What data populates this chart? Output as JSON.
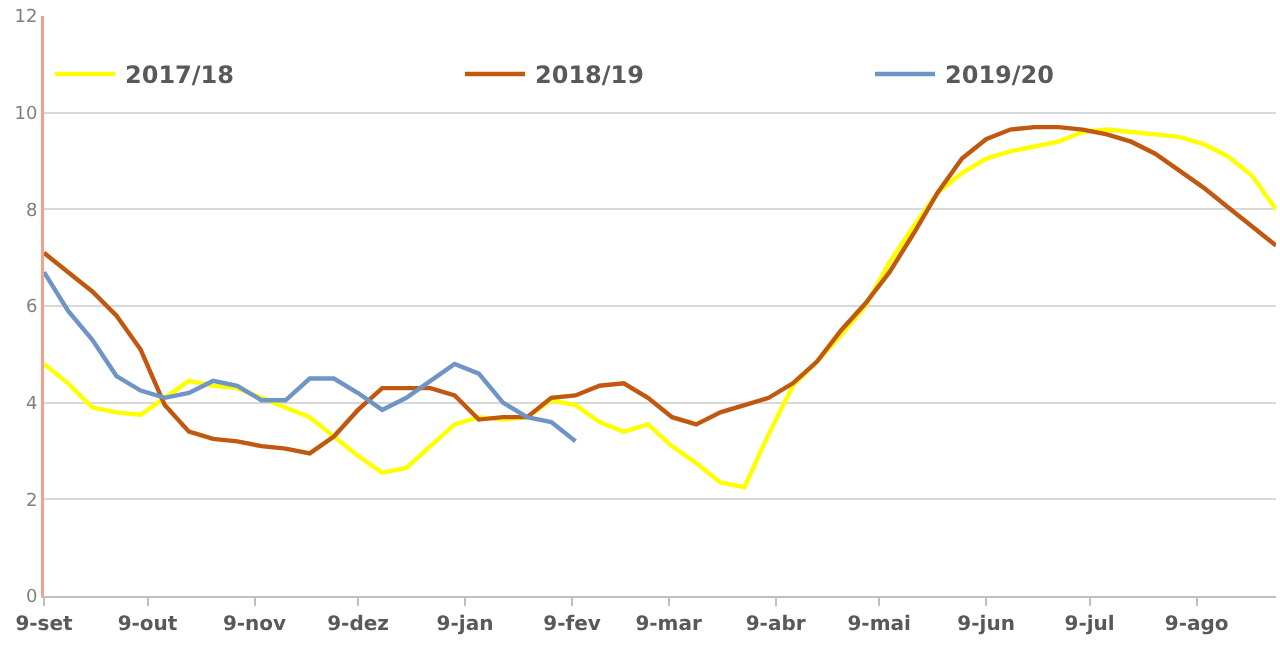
{
  "chart_data": {
    "type": "line",
    "x": [
      "2018-09-09",
      "2018-09-16",
      "2018-09-23",
      "2018-09-30",
      "2018-10-07",
      "2018-10-14",
      "2018-10-21",
      "2018-10-28",
      "2018-11-04",
      "2018-11-11",
      "2018-11-18",
      "2018-11-25",
      "2018-12-02",
      "2018-12-09",
      "2018-12-16",
      "2018-12-23",
      "2018-12-30",
      "2019-01-06",
      "2019-01-13",
      "2019-01-20",
      "2019-01-27",
      "2019-02-03",
      "2019-02-10",
      "2019-02-17",
      "2019-02-24",
      "2019-03-03",
      "2019-03-10",
      "2019-03-17",
      "2019-03-24",
      "2019-03-31",
      "2019-04-07",
      "2019-04-14",
      "2019-04-21",
      "2019-04-28",
      "2019-05-05",
      "2019-05-12",
      "2019-05-19",
      "2019-05-26",
      "2019-06-02",
      "2019-06-09",
      "2019-06-16",
      "2019-06-23",
      "2019-06-30",
      "2019-07-07",
      "2019-07-14",
      "2019-07-21",
      "2019-07-28",
      "2019-08-04",
      "2019-08-11",
      "2019-08-18",
      "2019-08-25",
      "2019-09-01"
    ],
    "series": [
      {
        "name": "2017/18",
        "color": "#ffff00",
        "values": [
          4.8,
          4.4,
          3.9,
          3.8,
          3.75,
          4.1,
          4.45,
          4.35,
          4.3,
          4.1,
          3.9,
          3.7,
          3.3,
          2.9,
          2.55,
          2.65,
          3.1,
          3.55,
          3.7,
          3.65,
          3.7,
          4.05,
          3.95,
          3.6,
          3.4,
          3.55,
          3.1,
          2.75,
          2.35,
          2.25,
          3.35,
          4.35,
          4.85,
          5.4,
          6.0,
          6.9,
          7.65,
          8.35,
          8.75,
          9.05,
          9.2,
          9.3,
          9.4,
          9.6,
          9.65,
          9.6,
          9.55,
          9.5,
          9.35,
          9.1,
          8.7,
          8.0
        ]
      },
      {
        "name": "2018/19",
        "color": "#c0590f",
        "values": [
          7.1,
          6.7,
          6.3,
          5.8,
          5.1,
          3.95,
          3.4,
          3.25,
          3.2,
          3.1,
          3.05,
          2.95,
          3.3,
          3.85,
          4.3,
          4.3,
          4.3,
          4.15,
          3.65,
          3.7,
          3.7,
          4.1,
          4.15,
          4.35,
          4.4,
          4.1,
          3.7,
          3.55,
          3.8,
          3.95,
          4.1,
          4.4,
          4.85,
          5.5,
          6.05,
          6.7,
          7.5,
          8.35,
          9.05,
          9.45,
          9.65,
          9.7,
          9.7,
          9.65,
          9.55,
          9.4,
          9.15,
          8.8,
          8.45,
          8.05,
          7.65,
          7.25
        ]
      },
      {
        "name": "2019/20",
        "color": "#6f95c6",
        "values": [
          6.7,
          5.9,
          5.3,
          4.55,
          4.25,
          4.1,
          4.2,
          4.45,
          4.35,
          4.05,
          4.05,
          4.5,
          4.5,
          4.2,
          3.85,
          4.1,
          4.45,
          4.8,
          4.6,
          4.0,
          3.7,
          3.6,
          3.2,
          null,
          null,
          null,
          null,
          null,
          null,
          null,
          null,
          null,
          null,
          null,
          null,
          null,
          null,
          null,
          null,
          null,
          null,
          null,
          null,
          null,
          null,
          null,
          null,
          null,
          null,
          null,
          null,
          null
        ]
      }
    ],
    "xlim": [
      "2018-09-09",
      "2019-09-01"
    ],
    "xticks": [
      {
        "value": "2018-09-09",
        "label": "9-set"
      },
      {
        "value": "2018-10-09",
        "label": "9-out"
      },
      {
        "value": "2018-11-09",
        "label": "9-nov"
      },
      {
        "value": "2018-12-09",
        "label": "9-dez"
      },
      {
        "value": "2019-01-09",
        "label": "9-jan"
      },
      {
        "value": "2019-02-09",
        "label": "9-fev"
      },
      {
        "value": "2019-03-09",
        "label": "9-mar"
      },
      {
        "value": "2019-04-09",
        "label": "9-abr"
      },
      {
        "value": "2019-05-09",
        "label": "9-mai"
      },
      {
        "value": "2019-06-09",
        "label": "9-jun"
      },
      {
        "value": "2019-07-09",
        "label": "9-jul"
      },
      {
        "value": "2019-08-09",
        "label": "9-ago"
      }
    ],
    "ylim": [
      0,
      12
    ],
    "yticks": [
      0,
      2,
      4,
      6,
      8,
      10,
      12
    ],
    "grid": "y",
    "legend": "top",
    "marker": "none",
    "line_style": "solid"
  }
}
